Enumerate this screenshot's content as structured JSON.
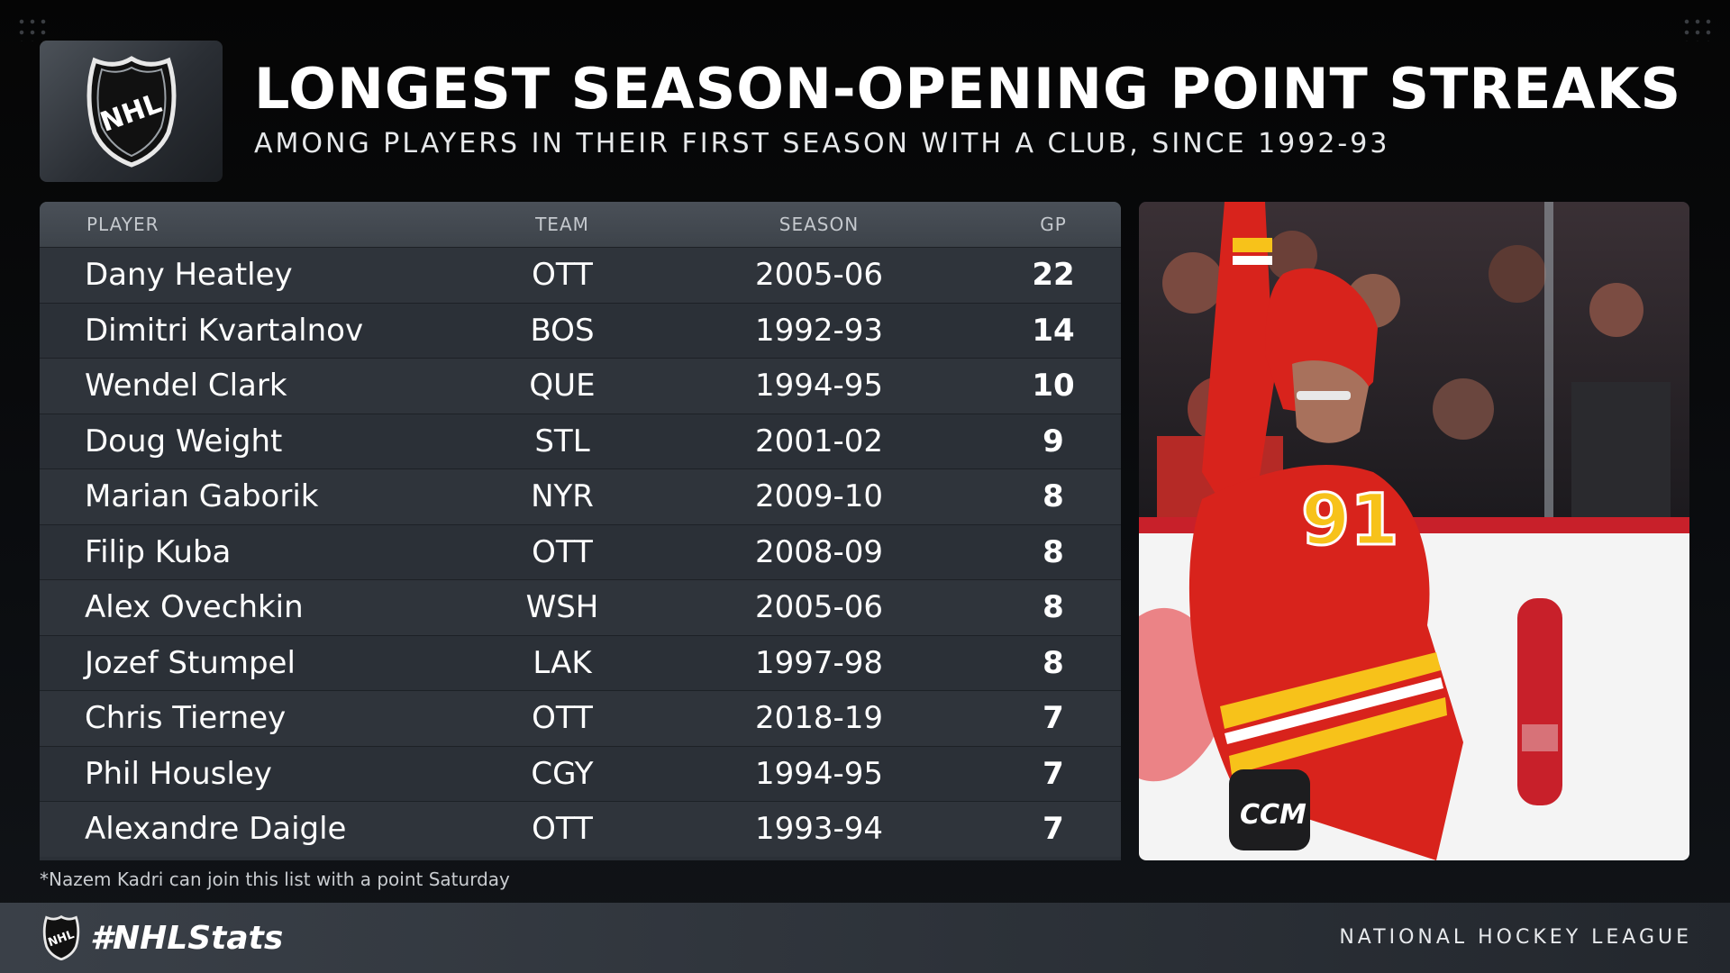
{
  "header": {
    "title": "LONGEST SEASON-OPENING POINT STREAKS",
    "subtitle": "AMONG PLAYERS IN THEIR FIRST SEASON WITH A CLUB, SINCE 1992-93",
    "logo_text": "NHL"
  },
  "table": {
    "columns": [
      "PLAYER",
      "TEAM",
      "SEASON",
      "GP"
    ],
    "rows": [
      {
        "player": "Dany Heatley",
        "team": "OTT",
        "season": "2005-06",
        "gp": "22"
      },
      {
        "player": "Dimitri Kvartalnov",
        "team": "BOS",
        "season": "1992-93",
        "gp": "14"
      },
      {
        "player": "Wendel Clark",
        "team": "QUE",
        "season": "1994-95",
        "gp": "10"
      },
      {
        "player": "Doug Weight",
        "team": "STL",
        "season": "2001-02",
        "gp": "9"
      },
      {
        "player": "Marian Gaborik",
        "team": "NYR",
        "season": "2009-10",
        "gp": "8"
      },
      {
        "player": "Filip Kuba",
        "team": "OTT",
        "season": "2008-09",
        "gp": "8"
      },
      {
        "player": "Alex Ovechkin",
        "team": "WSH",
        "season": "2005-06",
        "gp": "8"
      },
      {
        "player": "Jozef Stumpel",
        "team": "LAK",
        "season": "1997-98",
        "gp": "8"
      },
      {
        "player": "Chris Tierney",
        "team": "OTT",
        "season": "2018-19",
        "gp": "7"
      },
      {
        "player": "Phil Housley",
        "team": "CGY",
        "season": "1994-95",
        "gp": "7"
      },
      {
        "player": "Alexandre Daigle",
        "team": "OTT",
        "season": "1993-94",
        "gp": "7"
      }
    ]
  },
  "photo": {
    "jersey_number": "91",
    "glove_text": "CCM"
  },
  "footnote": "*Nazem Kadri can join this list with a point Saturday",
  "footer": {
    "hashtag": "#NHLStats",
    "league": "NATIONAL HOCKEY LEAGUE"
  },
  "colors": {
    "jersey_red": "#d8231c",
    "jersey_yellow": "#f7c21a"
  }
}
